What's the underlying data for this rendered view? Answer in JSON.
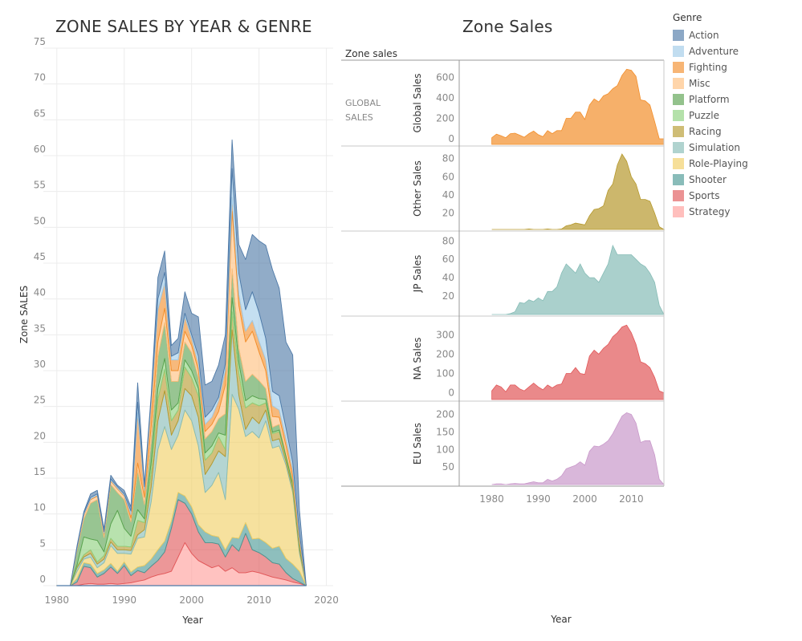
{
  "left_chart": {
    "title": "ZONE SALES BY YEAR & GENRE",
    "xlabel": "Year",
    "ylabel": "Zone SALES"
  },
  "right_chart": {
    "title": "Zone Sales",
    "header": "Zone sales",
    "row_label_line1": "GLOBAL",
    "row_label_line2": "SALES",
    "xlabel": "Year"
  },
  "legend": {
    "title": "Genre",
    "items": [
      {
        "name": "Action",
        "color": "#4e79a7"
      },
      {
        "name": "Adventure",
        "color": "#a0cbe8"
      },
      {
        "name": "Fighting",
        "color": "#f28e2b"
      },
      {
        "name": "Misc",
        "color": "#ffbe7d"
      },
      {
        "name": "Platform",
        "color": "#59a14f"
      },
      {
        "name": "Puzzle",
        "color": "#8cd17d"
      },
      {
        "name": "Racing",
        "color": "#b6992d"
      },
      {
        "name": "Simulation",
        "color": "#86bcb6"
      },
      {
        "name": "Role-Playing",
        "color": "#f1ce63"
      },
      {
        "name": "Shooter",
        "color": "#499894"
      },
      {
        "name": "Sports",
        "color": "#e15759"
      },
      {
        "name": "Strategy",
        "color": "#ff9d9a"
      }
    ]
  },
  "chart_data": [
    {
      "type": "area",
      "stacked": true,
      "title": "ZONE SALES BY YEAR & GENRE",
      "xlabel": "Year",
      "ylabel": "Zone SALES",
      "xlim": [
        1978,
        2021
      ],
      "ylim": [
        0,
        75
      ],
      "xticks": [
        1980,
        1990,
        2000,
        2010,
        2020
      ],
      "yticks": [
        0,
        5,
        10,
        15,
        20,
        25,
        30,
        35,
        40,
        45,
        50,
        55,
        60,
        65,
        70,
        75
      ],
      "grid": true,
      "x": [
        1980,
        1982,
        1983,
        1984,
        1985,
        1986,
        1987,
        1988,
        1989,
        1990,
        1991,
        1992,
        1993,
        1994,
        1995,
        1996,
        1997,
        1998,
        1999,
        2000,
        2001,
        2002,
        2003,
        2004,
        2005,
        2006,
        2007,
        2008,
        2009,
        2010,
        2011,
        2012,
        2013,
        2014,
        2015,
        2016,
        2017
      ],
      "series": [
        {
          "name": "Strategy",
          "values": [
            0,
            0,
            0,
            0.2,
            0.3,
            0.2,
            0.2,
            0.3,
            0.2,
            0.3,
            0.4,
            0.6,
            0.8,
            1.2,
            1.5,
            1.7,
            2.0,
            4.0,
            6.0,
            4.5,
            3.5,
            3.0,
            2.5,
            2.8,
            2.0,
            2.5,
            1.8,
            1.8,
            2.0,
            1.8,
            1.5,
            1.2,
            1.0,
            0.8,
            0.5,
            0.3,
            0
          ]
        },
        {
          "name": "Sports",
          "values": [
            0,
            0,
            0.5,
            2.5,
            2.2,
            1.0,
            1.5,
            2.3,
            1.5,
            2.5,
            1.0,
            1.5,
            1.0,
            1.5,
            2.0,
            3.0,
            6.0,
            8.0,
            5.5,
            5.5,
            4.0,
            3.0,
            3.5,
            3.0,
            2.0,
            3.2,
            3.0,
            5.5,
            3.0,
            2.8,
            2.5,
            2.0,
            2.0,
            1.0,
            0.5,
            0.2,
            0
          ]
        },
        {
          "name": "Shooter",
          "values": [
            0,
            0,
            0.5,
            0.5,
            0.5,
            0.5,
            0.5,
            0.5,
            0.3,
            0.5,
            0.5,
            0.5,
            1.0,
            1.0,
            1.5,
            1.5,
            1.0,
            1.0,
            1.0,
            1.0,
            1.0,
            1.5,
            1.0,
            1.0,
            1.0,
            1.0,
            1.8,
            1.5,
            1.5,
            2.0,
            2.0,
            2.0,
            2.5,
            2.0,
            2.0,
            1.5,
            0
          ]
        },
        {
          "name": "Role-Playing",
          "values": [
            0,
            0,
            1.0,
            0.5,
            1.0,
            0.8,
            1.0,
            2.5,
            2.5,
            1.2,
            2.5,
            4.0,
            4.0,
            8.0,
            14.0,
            16.0,
            10.0,
            8.0,
            12.0,
            12.0,
            11.0,
            5.5,
            7.0,
            9.0,
            7.0,
            20.0,
            18.0,
            12.0,
            15.0,
            14.0,
            17.0,
            14.0,
            14.0,
            13.0,
            10.0,
            2.5,
            0
          ]
        },
        {
          "name": "Simulation",
          "values": [
            0,
            0,
            0.5,
            0.3,
            0.5,
            0.5,
            0.5,
            0.5,
            0.5,
            0.5,
            0.5,
            0.5,
            1.0,
            2.0,
            4.0,
            5.0,
            2.0,
            2.0,
            3.0,
            3.5,
            4.0,
            2.5,
            3.0,
            3.0,
            6.0,
            9.0,
            2.0,
            1.0,
            2.0,
            2.0,
            1.5,
            1.0,
            1.0,
            0.5,
            0.5,
            0.5,
            0
          ]
        },
        {
          "name": "Racing",
          "values": [
            0,
            0,
            0.2,
            0.3,
            0.5,
            0.3,
            0.5,
            0.5,
            0.5,
            0.5,
            0.5,
            2.0,
            1.0,
            2.0,
            3.0,
            3.0,
            2.0,
            1.5,
            3.0,
            2.5,
            3.0,
            2.0,
            1.5,
            2.0,
            1.0,
            2.5,
            3.0,
            3.0,
            2.0,
            2.5,
            1.0,
            1.0,
            1.0,
            0.5,
            0.5,
            0.5,
            0
          ]
        },
        {
          "name": "Puzzle",
          "values": [
            0,
            0,
            0.2,
            2.5,
            1.5,
            3.0,
            0.5,
            2.0,
            5.0,
            2.5,
            1.5,
            1.5,
            0.5,
            1.5,
            1.5,
            1.5,
            1.5,
            1.0,
            1.0,
            1.0,
            1.0,
            1.0,
            1.0,
            0.5,
            2.0,
            2.0,
            1.5,
            1.0,
            1.0,
            1.0,
            0.5,
            0.2,
            0.2,
            0.2,
            0.2,
            0,
            0
          ]
        },
        {
          "name": "Platform",
          "values": [
            0,
            0,
            2.0,
            2.5,
            5.0,
            5.7,
            2.0,
            5.5,
            2.5,
            4.0,
            2.0,
            5.5,
            2.0,
            3.0,
            4.5,
            5.0,
            4.0,
            3.0,
            2.5,
            2.5,
            1.5,
            2.0,
            2.0,
            2.0,
            3.0,
            4.0,
            2.0,
            2.7,
            3.0,
            2.5,
            1.5,
            0.7,
            0.8,
            0.5,
            0.5,
            0.5,
            0
          ]
        },
        {
          "name": "Misc",
          "values": [
            0,
            0,
            0.2,
            0.5,
            0.5,
            0.5,
            0.5,
            0.5,
            0.5,
            0.5,
            0.5,
            1.0,
            1.0,
            2.0,
            2.0,
            2.0,
            1.5,
            1.5,
            1.5,
            1.0,
            1.0,
            1.0,
            1.0,
            1.0,
            4.0,
            8.0,
            6.0,
            5.5,
            6.0,
            4.0,
            2.5,
            1.5,
            1.0,
            1.0,
            0.5,
            0.3,
            0
          ]
        },
        {
          "name": "Fighting",
          "values": [
            0,
            0,
            0.1,
            0.1,
            0.1,
            0.1,
            0.1,
            0.1,
            0.1,
            0.1,
            0.5,
            7.0,
            1.0,
            3.5,
            4.5,
            3.5,
            1.5,
            1.5,
            2.0,
            1.0,
            1.0,
            1.0,
            1.0,
            1.5,
            2.0,
            2.0,
            1.5,
            1.5,
            1.5,
            1.5,
            1.5,
            1.5,
            1.0,
            1.0,
            1.0,
            0.5,
            0
          ]
        },
        {
          "name": "Adventure",
          "values": [
            0,
            0,
            0.2,
            0.2,
            0.2,
            0.2,
            0.2,
            0.2,
            0.2,
            0.2,
            0.5,
            1.5,
            0.5,
            0.5,
            1.5,
            1.5,
            0.5,
            1.0,
            0.5,
            0.5,
            1.0,
            1.0,
            1.0,
            0.5,
            1.0,
            4.0,
            3.0,
            3.0,
            4.0,
            4.0,
            3.0,
            2.0,
            2.0,
            1.5,
            1.0,
            0.5,
            0
          ]
        },
        {
          "name": "Action",
          "values": [
            0,
            0,
            0.2,
            0.2,
            0.5,
            0.5,
            0.4,
            0.5,
            0.2,
            0.5,
            0.6,
            2.7,
            0.4,
            0.4,
            3.0,
            3.0,
            1.5,
            2.0,
            3.0,
            3.0,
            5.5,
            4.5,
            4.0,
            4.5,
            4.0,
            4.0,
            4.0,
            7.0,
            8.0,
            10.0,
            13.0,
            17.0,
            15.0,
            12.0,
            15.0,
            3.2,
            0
          ]
        }
      ]
    },
    {
      "type": "area",
      "title": "Zone Sales",
      "xlabel": "Year",
      "xlim": [
        1973,
        2017
      ],
      "xticks": [
        1980,
        1990,
        2000,
        2010
      ],
      "x": [
        1980,
        1981,
        1982,
        1983,
        1984,
        1985,
        1986,
        1987,
        1988,
        1989,
        1990,
        1991,
        1992,
        1993,
        1994,
        1995,
        1996,
        1997,
        1998,
        1999,
        2000,
        2001,
        2002,
        2003,
        2004,
        2005,
        2006,
        2007,
        2008,
        2009,
        2010,
        2011,
        2012,
        2013,
        2014,
        2015,
        2016,
        2017
      ],
      "series": [
        {
          "name": "Global Sales",
          "color": "#f28e2b",
          "yticks": [
            0,
            200,
            400,
            600
          ],
          "ylim": [
            -55,
            690
          ],
          "values": [
            10,
            45,
            30,
            10,
            50,
            55,
            35,
            15,
            50,
            75,
            40,
            20,
            80,
            50,
            80,
            80,
            200,
            200,
            260,
            260,
            190,
            330,
            390,
            360,
            420,
            440,
            490,
            520,
            620,
            680,
            670,
            610,
            380,
            370,
            330,
            170,
            0,
            0
          ]
        },
        {
          "name": "Other Sales",
          "color": "#b6992d",
          "yticks": [
            20,
            40,
            60,
            80
          ],
          "ylim": [
            2,
            85
          ],
          "values": [
            0.5,
            1.0,
            0.5,
            1.0,
            1.5,
            2.0,
            1.5,
            1.0,
            2.5,
            1.5,
            1.5,
            1.0,
            2.5,
            1.5,
            2.0,
            2.5,
            6,
            7,
            9,
            8,
            7,
            17,
            24,
            25,
            28,
            45,
            52,
            73,
            85,
            77,
            60,
            52,
            35,
            35,
            33,
            20,
            5,
            0
          ]
        },
        {
          "name": "JP Sales",
          "color": "#86bcb6",
          "yticks": [
            20,
            40,
            60,
            80
          ],
          "ylim": [
            0,
            82
          ],
          "values": [
            0,
            0,
            0,
            0,
            1,
            3,
            13,
            12,
            16,
            14,
            18,
            15,
            25,
            25,
            30,
            45,
            55,
            50,
            45,
            55,
            45,
            40,
            40,
            35,
            45,
            55,
            75,
            65,
            65,
            65,
            65,
            60,
            55,
            52,
            45,
            35,
            10,
            0
          ]
        },
        {
          "name": "NA Sales",
          "color": "#e15759",
          "yticks": [
            0,
            100,
            200,
            300
          ],
          "ylim": [
            -35,
            355
          ],
          "values": [
            10,
            40,
            30,
            5,
            40,
            40,
            20,
            10,
            30,
            50,
            30,
            15,
            40,
            25,
            40,
            45,
            100,
            100,
            130,
            100,
            95,
            190,
            220,
            200,
            230,
            250,
            290,
            310,
            340,
            350,
            310,
            250,
            160,
            150,
            130,
            80,
            10,
            0
          ]
        },
        {
          "name": "EU Sales",
          "color": "#c999ca",
          "yticks": [
            50,
            100,
            150,
            200
          ],
          "ylim": [
            0,
            215
          ],
          "values": [
            0,
            2,
            2,
            0,
            2,
            3,
            2,
            2,
            5,
            8,
            5,
            5,
            15,
            10,
            15,
            25,
            45,
            50,
            55,
            65,
            55,
            95,
            110,
            108,
            115,
            125,
            145,
            170,
            195,
            205,
            200,
            175,
            120,
            125,
            125,
            85,
            15,
            0
          ]
        }
      ]
    }
  ]
}
